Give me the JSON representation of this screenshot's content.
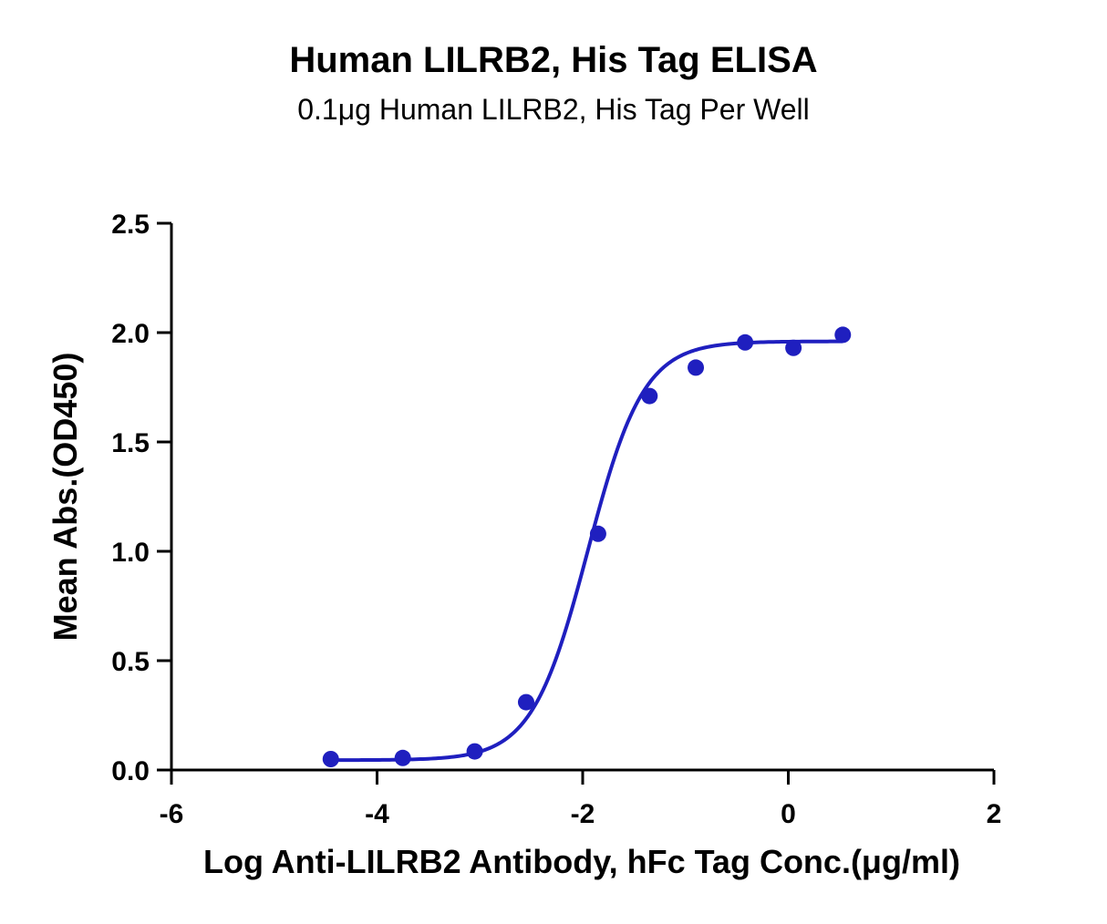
{
  "chart_data": {
    "type": "scatter",
    "title": "Human LILRB2, His Tag ELISA",
    "subtitle": "0.1μg Human LILRB2, His Tag Per Well",
    "xlabel": "Log Anti-LILRB2 Antibody, hFc Tag Conc.(μg/ml)",
    "ylabel": "Mean Abs.(OD450)",
    "xlim": [
      -6,
      2
    ],
    "ylim": [
      0,
      2.5
    ],
    "xticks": [
      "-6",
      "-4",
      "-2",
      "0",
      "2"
    ],
    "yticks": [
      "0.0",
      "0.5",
      "1.0",
      "1.5",
      "2.0",
      "2.5"
    ],
    "grid": false,
    "series": [
      {
        "color": "#1f1fbf",
        "x": [
          -4.45,
          -3.75,
          -3.05,
          -2.55,
          -1.85,
          -1.35,
          -0.9,
          -0.42,
          0.05,
          0.53
        ],
        "y": [
          0.05,
          0.055,
          0.085,
          0.31,
          1.08,
          1.71,
          1.84,
          1.955,
          1.93,
          1.99
        ],
        "fit": {
          "model": "4PL",
          "bottom": 0.045,
          "top": 1.96,
          "logEC50": -1.95,
          "hill": 1.6,
          "x_start": -4.45,
          "x_end": 0.53
        }
      }
    ]
  }
}
